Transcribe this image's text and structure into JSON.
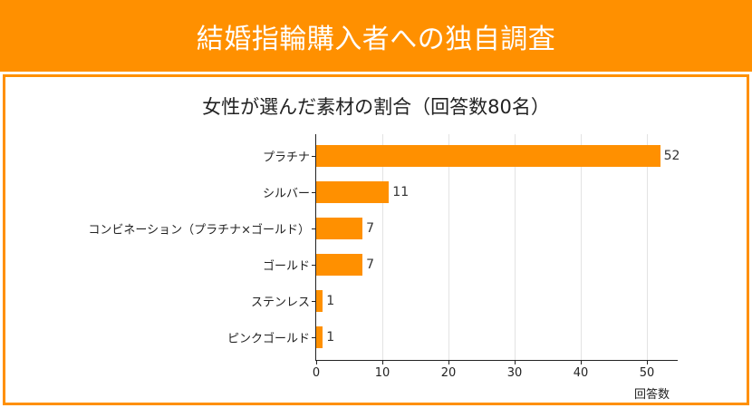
{
  "header": {
    "title": "結婚指輪購入者への独自調査"
  },
  "colors": {
    "accent": "#ff9000",
    "bar": "#ff9000",
    "grid": "#e3e3e3",
    "text": "#222222"
  },
  "chart_data": {
    "type": "bar",
    "orientation": "horizontal",
    "title": "女性が選んだ素材の割合（回答数80名）",
    "categories": [
      "プラチナ",
      "シルバー",
      "コンビネーション（プラチナ×ゴールド）",
      "ゴールド",
      "ステンレス",
      "ピンクゴールド"
    ],
    "values": [
      52,
      11,
      7,
      7,
      1,
      1
    ],
    "xlabel": "回答数",
    "ylabel": "",
    "xlim": [
      0,
      54.6
    ],
    "xticks": [
      0,
      10,
      20,
      30,
      40,
      50
    ],
    "grid": "vertical",
    "data_labels": true,
    "legend": null
  }
}
